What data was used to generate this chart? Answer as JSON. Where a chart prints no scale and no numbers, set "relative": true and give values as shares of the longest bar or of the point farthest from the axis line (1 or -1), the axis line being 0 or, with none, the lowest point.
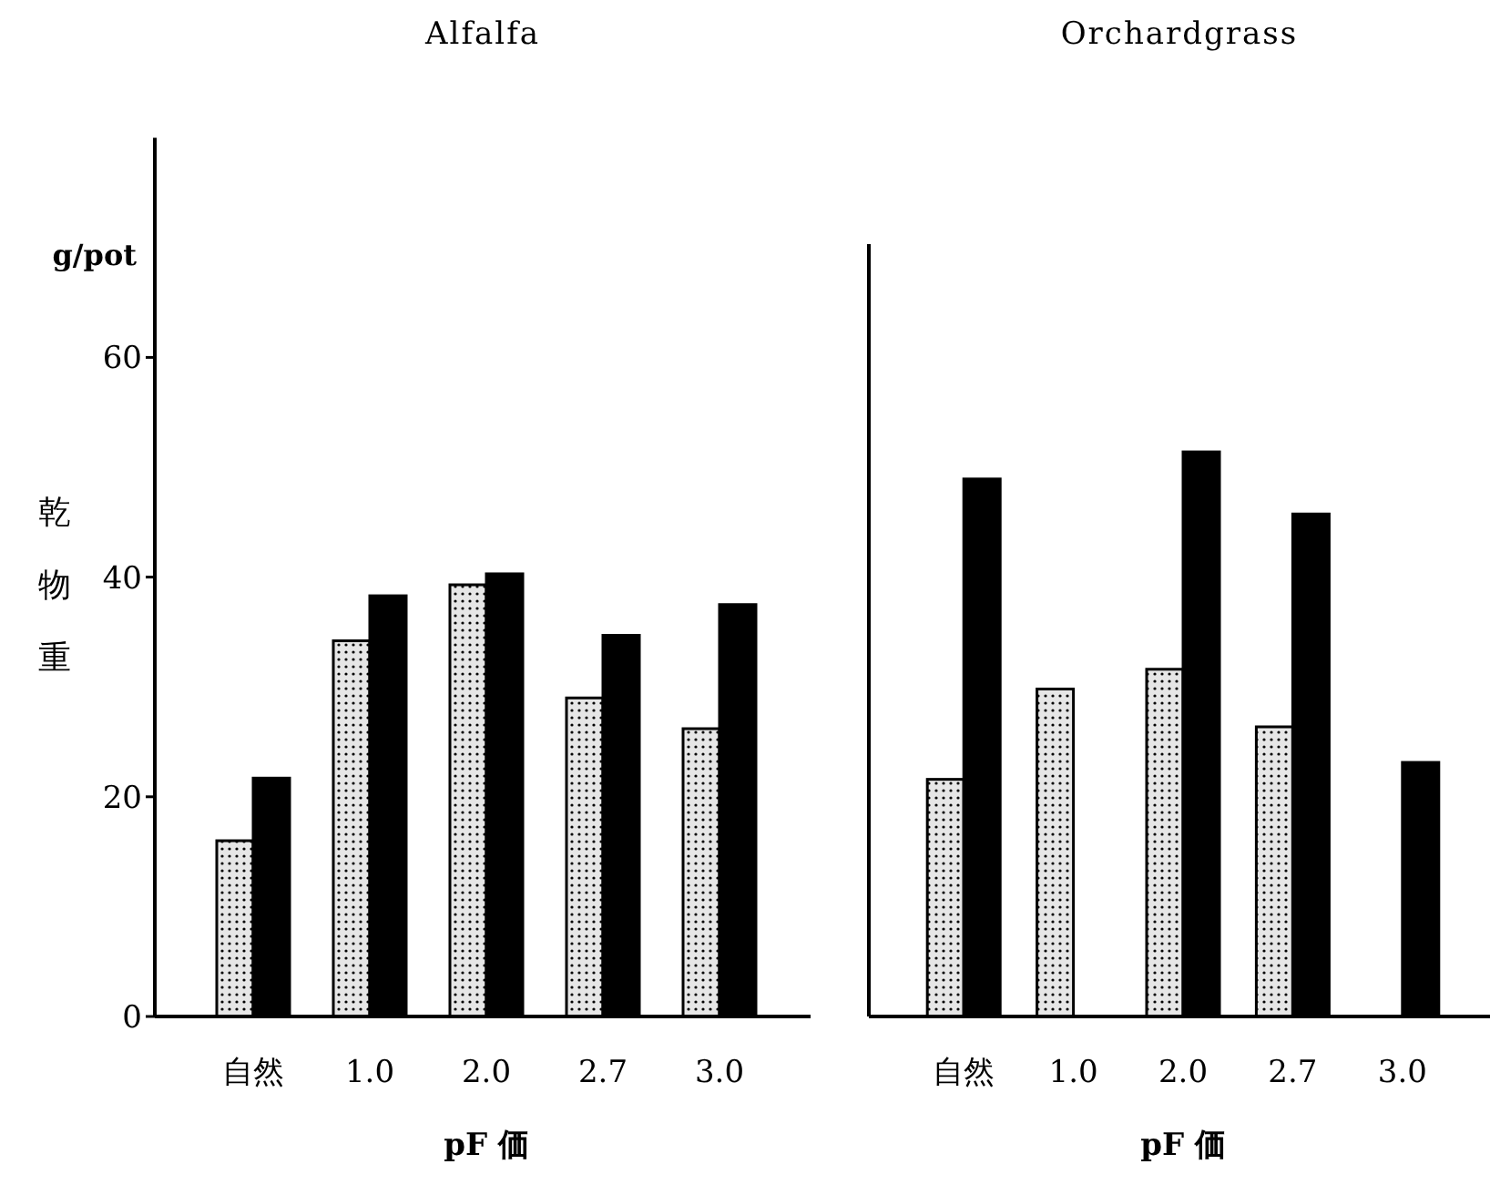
{
  "chart_data": [
    {
      "type": "bar",
      "title": "Alfalfa",
      "ylabel": "乾物重",
      "xlabel": "pF 価",
      "annotations": [
        "g/pot"
      ],
      "categories": [
        "自然",
        "1.0",
        "2.0",
        "2.7",
        "3.0"
      ],
      "ylim": [
        0,
        80
      ],
      "yticks": [
        0,
        20,
        40,
        60
      ],
      "series": [
        {
          "color": "#e6e6e6",
          "values": [
            16,
            34.2,
            39.3,
            29,
            26.2
          ]
        },
        {
          "color": "#000000",
          "values": [
            21.7,
            38.3,
            40.3,
            34.7,
            37.5
          ]
        }
      ]
    },
    {
      "type": "bar",
      "title": "Orchardgrass",
      "xlabel": "pF 価",
      "categories": [
        "自然",
        "1.0",
        "2.0",
        "2.7",
        "3.0"
      ],
      "relative": true,
      "tick_labels": "x",
      "series": [
        {
          "color": "#e6e6e6",
          "values": [
            0.42,
            0.58,
            0.615,
            0.513,
            null
          ]
        },
        {
          "color": "#000000",
          "values": [
            0.952,
            null,
            1,
            0.89,
            0.45
          ]
        }
      ]
    }
  ]
}
